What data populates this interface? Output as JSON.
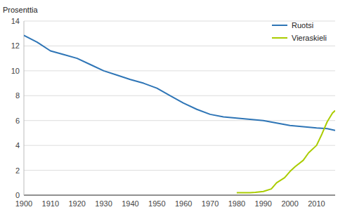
{
  "chart_data": {
    "type": "line",
    "ylabel": "Prosenttia",
    "series": [
      {
        "name": "Ruotsi",
        "color": "#2E75B6",
        "x": [
          1900,
          1905,
          1910,
          1915,
          1920,
          1925,
          1930,
          1935,
          1940,
          1945,
          1950,
          1955,
          1960,
          1965,
          1970,
          1975,
          1980,
          1985,
          1990,
          1995,
          2000,
          2005,
          2010,
          2014,
          2017
        ],
        "values": [
          12.85,
          12.3,
          11.6,
          11.3,
          11.0,
          10.5,
          10.0,
          9.65,
          9.3,
          9.0,
          8.6,
          8.0,
          7.4,
          6.9,
          6.5,
          6.3,
          6.2,
          6.1,
          6.0,
          5.8,
          5.6,
          5.5,
          5.4,
          5.35,
          5.2
        ]
      },
      {
        "name": "Vieraskieli",
        "color": "#AACC00",
        "x": [
          1980,
          1983,
          1985,
          1987,
          1990,
          1993,
          1995,
          1998,
          2000,
          2002,
          2005,
          2007,
          2010,
          2012,
          2014,
          2016,
          2017
        ],
        "values": [
          0.2,
          0.2,
          0.2,
          0.22,
          0.3,
          0.5,
          1.0,
          1.4,
          1.9,
          2.3,
          2.8,
          3.4,
          4.0,
          4.9,
          5.9,
          6.6,
          6.8
        ]
      }
    ],
    "xlim": [
      1900,
      2017
    ],
    "ylim": [
      0,
      14
    ],
    "xticks": [
      1900,
      1910,
      1920,
      1930,
      1940,
      1950,
      1960,
      1970,
      1980,
      1990,
      2000,
      2010
    ],
    "yticks": [
      0,
      2,
      4,
      6,
      8,
      10,
      12,
      14
    ],
    "grid": true,
    "legend": "upper right"
  }
}
